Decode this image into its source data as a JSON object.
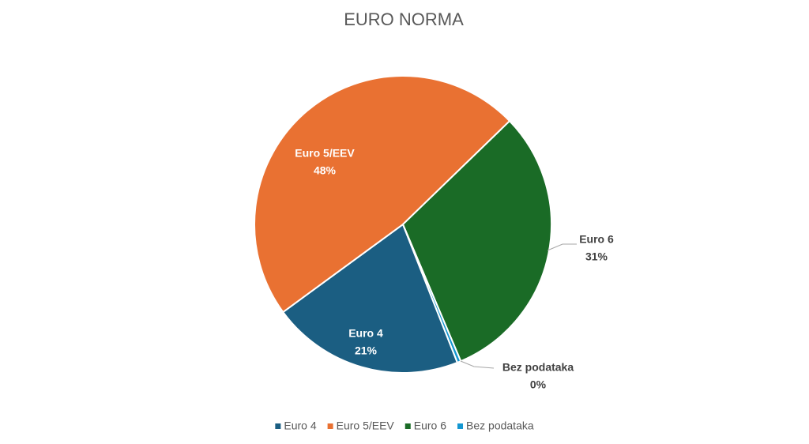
{
  "chart_data": {
    "type": "pie",
    "title": "EURO NORMA",
    "categories": [
      "Euro 4",
      "Euro 5/EEV",
      "Euro 6",
      "Bez podataka"
    ],
    "values": [
      21,
      48,
      31,
      0.4
    ],
    "value_labels": [
      "21%",
      "48%",
      "31%",
      "0%"
    ],
    "colors": [
      "#1b5e82",
      "#e97132",
      "#1a6b26",
      "#1497d1"
    ],
    "legend": "bottom"
  }
}
